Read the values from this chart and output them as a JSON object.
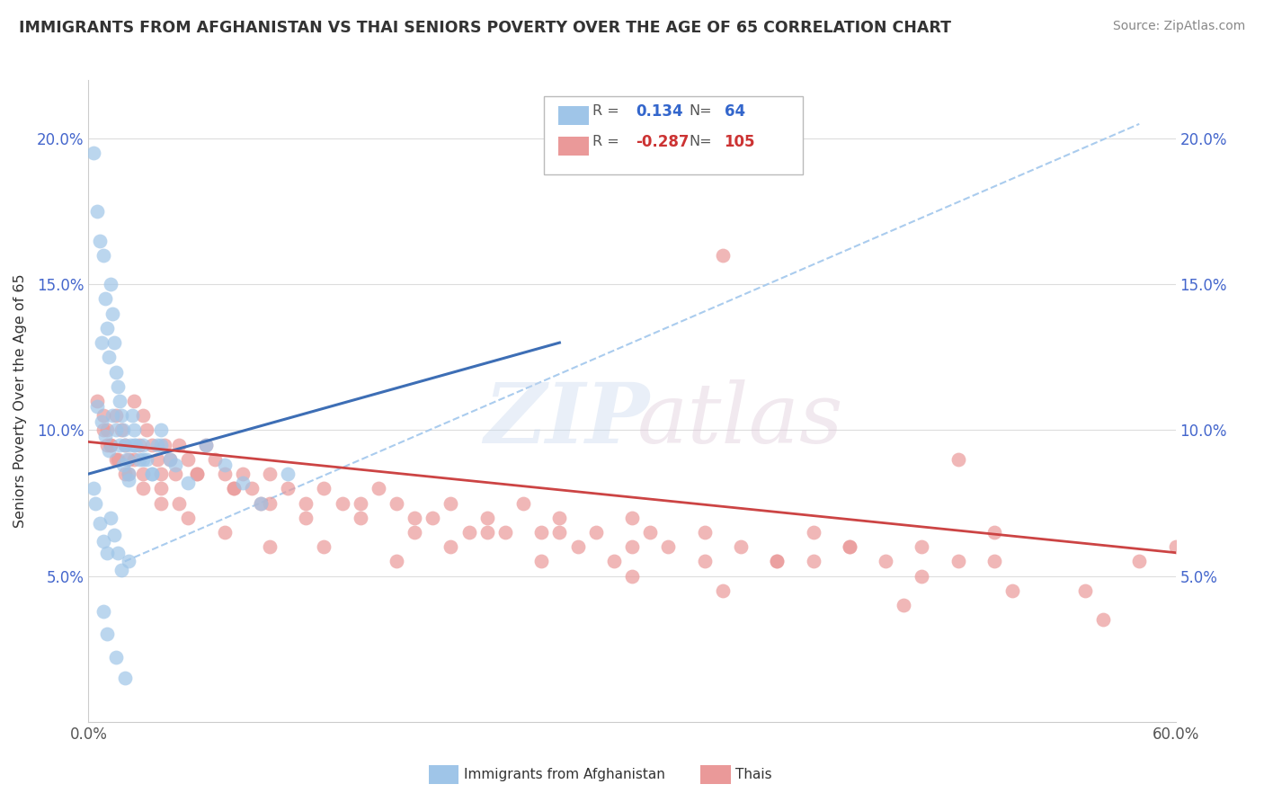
{
  "title": "IMMIGRANTS FROM AFGHANISTAN VS THAI SENIORS POVERTY OVER THE AGE OF 65 CORRELATION CHART",
  "source": "Source: ZipAtlas.com",
  "ylabel": "Seniors Poverty Over the Age of 65",
  "xlim": [
    0.0,
    0.6
  ],
  "ylim": [
    0.0,
    0.22
  ],
  "yticks": [
    0.05,
    0.1,
    0.15,
    0.2
  ],
  "ytick_labels": [
    "5.0%",
    "10.0%",
    "15.0%",
    "20.0%"
  ],
  "xticks": [
    0.0,
    0.1,
    0.2,
    0.3,
    0.4,
    0.5,
    0.6
  ],
  "xtick_labels": [
    "0.0%",
    "",
    "",
    "",
    "",
    "",
    "60.0%"
  ],
  "afghan_color": "#9fc5e8",
  "thai_color": "#ea9999",
  "afghan_line_color": "#3d6eb5",
  "thai_line_color": "#cc4444",
  "dash_line_color": "#aaccee",
  "legend_r_afghan": "0.134",
  "legend_n_afghan": "64",
  "legend_r_thai": "-0.287",
  "legend_n_thai": "105",
  "afghan_x": [
    0.003,
    0.005,
    0.006,
    0.007,
    0.008,
    0.009,
    0.01,
    0.011,
    0.012,
    0.013,
    0.014,
    0.015,
    0.016,
    0.017,
    0.018,
    0.019,
    0.02,
    0.021,
    0.022,
    0.023,
    0.024,
    0.025,
    0.026,
    0.028,
    0.03,
    0.032,
    0.035,
    0.038,
    0.04,
    0.045,
    0.005,
    0.007,
    0.009,
    0.011,
    0.013,
    0.015,
    0.017,
    0.019,
    0.022,
    0.025,
    0.03,
    0.035,
    0.04,
    0.048,
    0.055,
    0.065,
    0.075,
    0.085,
    0.095,
    0.11,
    0.003,
    0.004,
    0.006,
    0.008,
    0.01,
    0.012,
    0.014,
    0.016,
    0.018,
    0.022,
    0.008,
    0.01,
    0.015,
    0.02
  ],
  "afghan_y": [
    0.195,
    0.175,
    0.165,
    0.13,
    0.16,
    0.145,
    0.135,
    0.125,
    0.15,
    0.14,
    0.13,
    0.12,
    0.115,
    0.11,
    0.105,
    0.1,
    0.095,
    0.09,
    0.085,
    0.095,
    0.105,
    0.1,
    0.095,
    0.09,
    0.095,
    0.09,
    0.085,
    0.095,
    0.1,
    0.09,
    0.108,
    0.103,
    0.098,
    0.093,
    0.105,
    0.1,
    0.095,
    0.088,
    0.083,
    0.095,
    0.09,
    0.085,
    0.095,
    0.088,
    0.082,
    0.095,
    0.088,
    0.082,
    0.075,
    0.085,
    0.08,
    0.075,
    0.068,
    0.062,
    0.058,
    0.07,
    0.064,
    0.058,
    0.052,
    0.055,
    0.038,
    0.03,
    0.022,
    0.015
  ],
  "thai_x": [
    0.005,
    0.008,
    0.01,
    0.012,
    0.015,
    0.018,
    0.02,
    0.022,
    0.025,
    0.028,
    0.03,
    0.032,
    0.035,
    0.038,
    0.04,
    0.042,
    0.045,
    0.048,
    0.05,
    0.055,
    0.06,
    0.065,
    0.07,
    0.075,
    0.08,
    0.085,
    0.09,
    0.095,
    0.1,
    0.11,
    0.12,
    0.13,
    0.14,
    0.15,
    0.16,
    0.17,
    0.18,
    0.19,
    0.2,
    0.21,
    0.22,
    0.23,
    0.24,
    0.25,
    0.26,
    0.27,
    0.28,
    0.29,
    0.3,
    0.31,
    0.32,
    0.34,
    0.36,
    0.38,
    0.4,
    0.42,
    0.44,
    0.46,
    0.48,
    0.5,
    0.008,
    0.012,
    0.016,
    0.02,
    0.025,
    0.03,
    0.04,
    0.05,
    0.06,
    0.08,
    0.1,
    0.12,
    0.15,
    0.18,
    0.22,
    0.26,
    0.3,
    0.34,
    0.38,
    0.42,
    0.46,
    0.5,
    0.55,
    0.01,
    0.015,
    0.022,
    0.03,
    0.04,
    0.055,
    0.075,
    0.1,
    0.13,
    0.17,
    0.2,
    0.25,
    0.3,
    0.35,
    0.4,
    0.45,
    0.51,
    0.56,
    0.6,
    0.35,
    0.58,
    0.48
  ],
  "thai_y": [
    0.11,
    0.105,
    0.1,
    0.095,
    0.105,
    0.1,
    0.095,
    0.09,
    0.11,
    0.095,
    0.105,
    0.1,
    0.095,
    0.09,
    0.085,
    0.095,
    0.09,
    0.085,
    0.095,
    0.09,
    0.085,
    0.095,
    0.09,
    0.085,
    0.08,
    0.085,
    0.08,
    0.075,
    0.085,
    0.08,
    0.075,
    0.08,
    0.075,
    0.07,
    0.08,
    0.075,
    0.065,
    0.07,
    0.075,
    0.065,
    0.07,
    0.065,
    0.075,
    0.065,
    0.07,
    0.06,
    0.065,
    0.055,
    0.07,
    0.065,
    0.06,
    0.065,
    0.06,
    0.055,
    0.065,
    0.06,
    0.055,
    0.06,
    0.055,
    0.065,
    0.1,
    0.095,
    0.09,
    0.085,
    0.09,
    0.085,
    0.08,
    0.075,
    0.085,
    0.08,
    0.075,
    0.07,
    0.075,
    0.07,
    0.065,
    0.065,
    0.06,
    0.055,
    0.055,
    0.06,
    0.05,
    0.055,
    0.045,
    0.095,
    0.09,
    0.085,
    0.08,
    0.075,
    0.07,
    0.065,
    0.06,
    0.06,
    0.055,
    0.06,
    0.055,
    0.05,
    0.045,
    0.055,
    0.04,
    0.045,
    0.035,
    0.06,
    0.16,
    0.055,
    0.09
  ]
}
